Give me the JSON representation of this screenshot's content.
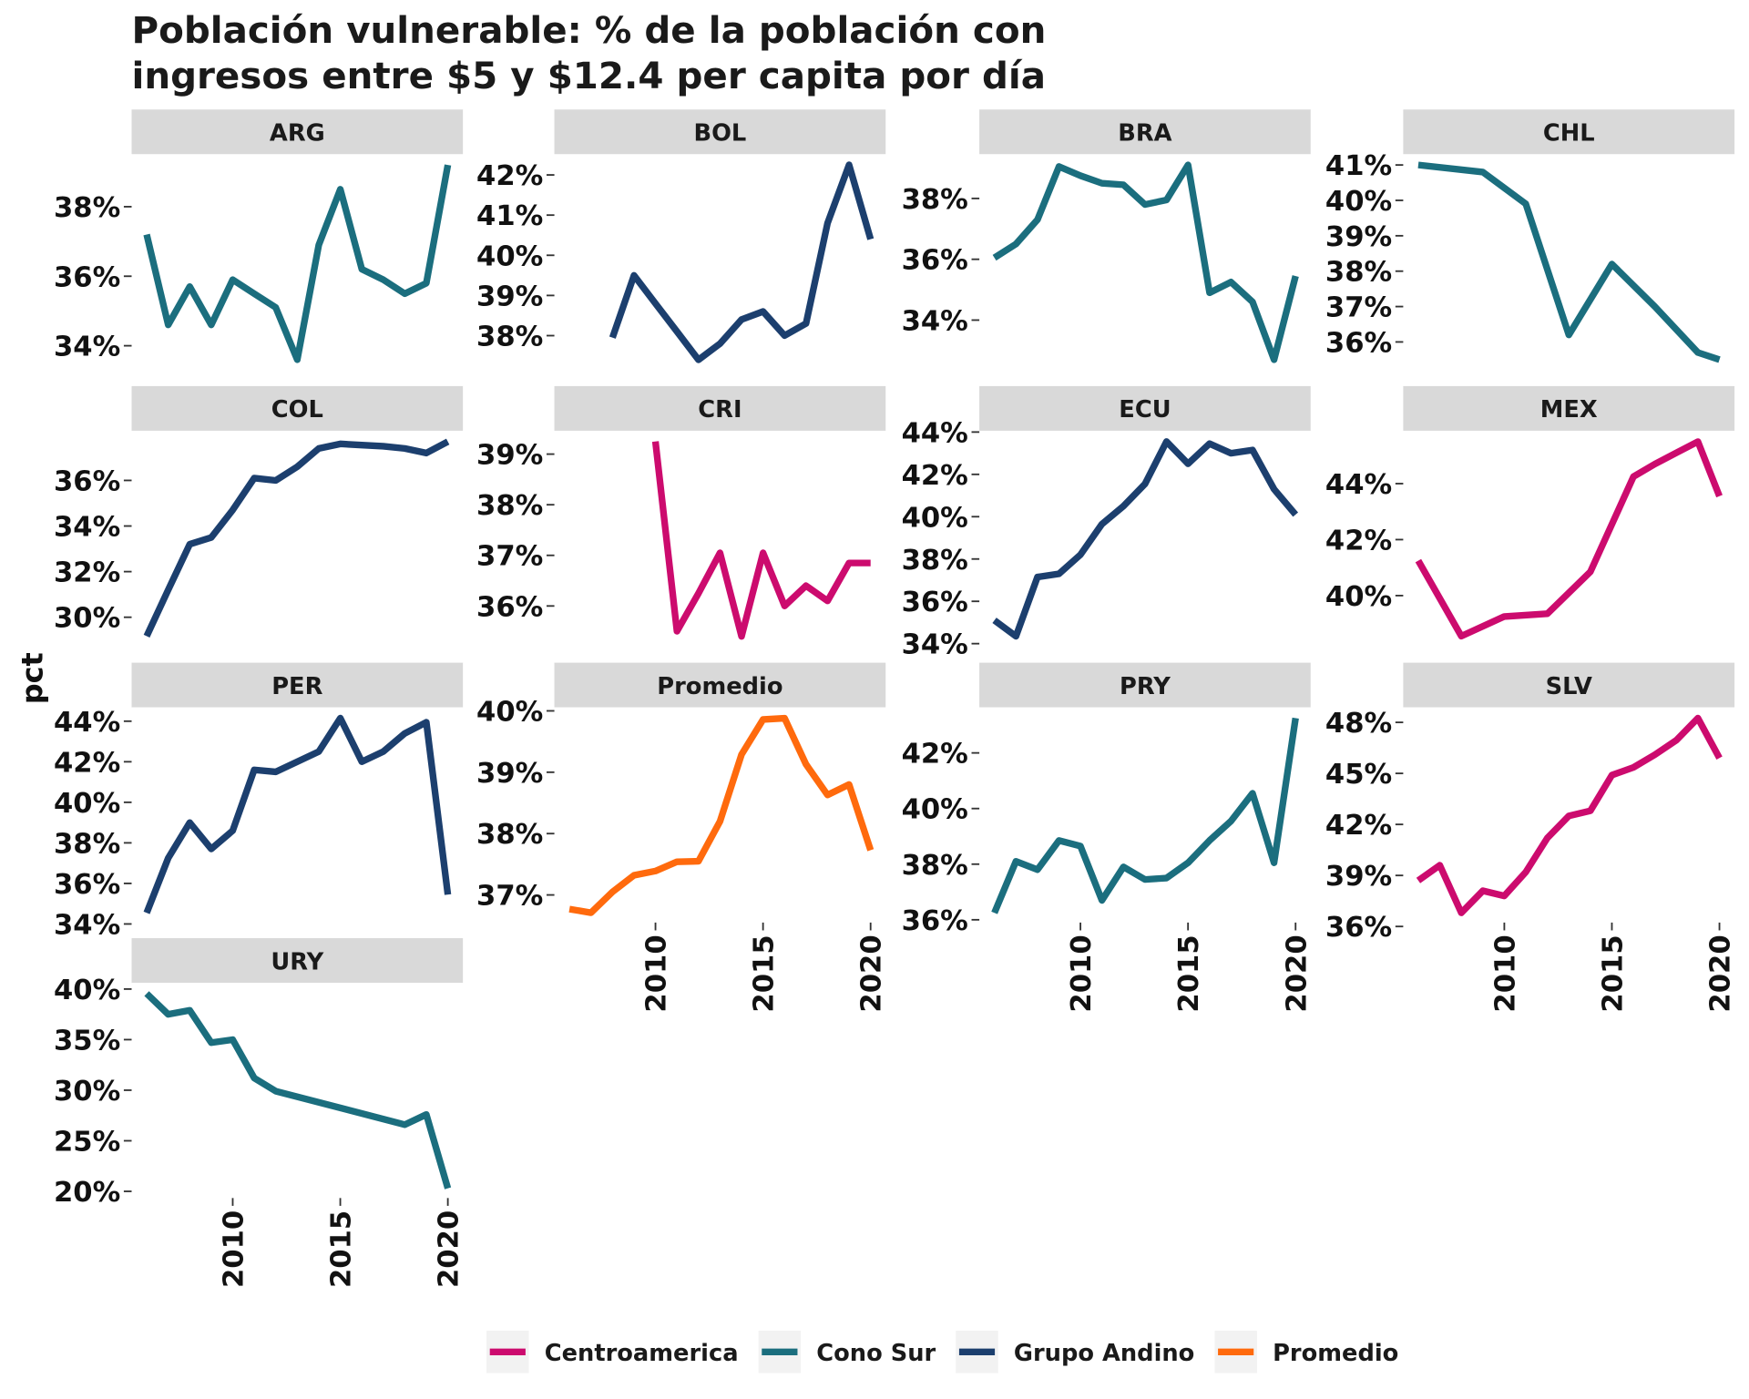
{
  "title": [
    "Población vulnerable: % de la población con",
    "ingresos entre $5 y $12.4 per capita por día"
  ],
  "y_label": "pct",
  "legend": {
    "position": "bottom"
  },
  "chart_data": [
    {
      "type": "line",
      "title": "ARG",
      "xlim": [
        2005.3,
        2020.7
      ],
      "ylim": [
        33.32,
        39.48
      ],
      "x": [
        2006,
        2007,
        2008,
        2009,
        2010,
        2011,
        2012,
        2013,
        2014,
        2015,
        2016,
        2017,
        2018,
        2019,
        2020
      ],
      "series": [
        {
          "name": "Cono Sur",
          "color": "#1b6e7e",
          "values": [
            37.2,
            34.6,
            35.7,
            34.6,
            35.9,
            35.5,
            35.1,
            33.6,
            36.9,
            38.5,
            36.2,
            35.9,
            35.5,
            35.8,
            39.2
          ]
        }
      ],
      "yticks": [
        {
          "value": 34,
          "label": "34%"
        },
        {
          "value": 36,
          "label": "36%"
        },
        {
          "value": 38,
          "label": "38%"
        }
      ]
    },
    {
      "type": "line",
      "title": "BOL",
      "xlim": [
        2005.3,
        2020.7
      ],
      "ylim": [
        37.16,
        42.49
      ],
      "x": [
        2008,
        2009,
        2010,
        2011,
        2012,
        2013,
        2014,
        2015,
        2016,
        2017,
        2018,
        2019,
        2020
      ],
      "series": [
        {
          "name": "Grupo Andino",
          "color": "#1c3f6e",
          "values": [
            37.95,
            39.5,
            38.8,
            38.1,
            37.4,
            37.8,
            38.4,
            38.6,
            38.0,
            38.3,
            40.8,
            42.25,
            40.4
          ]
        }
      ],
      "yticks": [
        {
          "value": 38,
          "label": "38%"
        },
        {
          "value": 39,
          "label": "39%"
        },
        {
          "value": 40,
          "label": "40%"
        },
        {
          "value": 41,
          "label": "41%"
        },
        {
          "value": 42,
          "label": "42%"
        }
      ]
    },
    {
      "type": "line",
      "title": "BRA",
      "xlim": [
        2005.3,
        2020.7
      ],
      "ylim": [
        32.38,
        39.42
      ],
      "x": [
        2006,
        2007,
        2008,
        2009,
        2010,
        2011,
        2012,
        2013,
        2014,
        2015,
        2016,
        2017,
        2018,
        2019,
        2020
      ],
      "series": [
        {
          "name": "Cono Sur",
          "color": "#1b6e7e",
          "values": [
            36.05,
            36.5,
            37.3,
            39.05,
            38.75,
            38.5,
            38.45,
            37.8,
            37.95,
            39.1,
            34.9,
            35.25,
            34.6,
            32.7,
            35.45
          ]
        }
      ],
      "yticks": [
        {
          "value": 34,
          "label": "34%"
        },
        {
          "value": 36,
          "label": "36%"
        },
        {
          "value": 38,
          "label": "38%"
        }
      ]
    },
    {
      "type": "line",
      "title": "CHL",
      "xlim": [
        2005.3,
        2020.7
      ],
      "ylim": [
        35.225,
        41.275
      ],
      "x": [
        2006,
        2009,
        2011,
        2013,
        2015,
        2017,
        2019,
        2020
      ],
      "series": [
        {
          "name": "Cono Sur",
          "color": "#1b6e7e",
          "values": [
            41.0,
            40.8,
            39.9,
            36.2,
            38.2,
            37.0,
            35.7,
            35.5
          ]
        }
      ],
      "yticks": [
        {
          "value": 36,
          "label": "36%"
        },
        {
          "value": 37,
          "label": "37%"
        },
        {
          "value": 38,
          "label": "38%"
        },
        {
          "value": 39,
          "label": "39%"
        },
        {
          "value": 40,
          "label": "40%"
        },
        {
          "value": 41,
          "label": "41%"
        }
      ]
    },
    {
      "type": "line",
      "title": "COL",
      "xlim": [
        2005.3,
        2020.7
      ],
      "ylim": [
        28.74,
        38.13
      ],
      "x": [
        2006,
        2007,
        2008,
        2009,
        2010,
        2011,
        2012,
        2013,
        2014,
        2015,
        2016,
        2017,
        2018,
        2019,
        2020
      ],
      "series": [
        {
          "name": "Grupo Andino",
          "color": "#1c3f6e",
          "values": [
            29.17,
            31.2,
            33.2,
            33.5,
            34.7,
            36.1,
            36.0,
            36.6,
            37.4,
            37.6,
            37.55,
            37.5,
            37.4,
            37.2,
            37.7
          ]
        }
      ],
      "yticks": [
        {
          "value": 30,
          "label": "30%"
        },
        {
          "value": 32,
          "label": "32%"
        },
        {
          "value": 34,
          "label": "34%"
        },
        {
          "value": 36,
          "label": "36%"
        }
      ]
    },
    {
      "type": "line",
      "title": "CRI",
      "xlim": [
        2005.3,
        2020.7
      ],
      "ylim": [
        35.21,
        39.44
      ],
      "x": [
        2010,
        2011,
        2012,
        2013,
        2014,
        2015,
        2016,
        2017,
        2018,
        2019,
        2020
      ],
      "series": [
        {
          "name": "Centroamerica",
          "color": "#cc0b6e",
          "values": [
            39.25,
            35.5,
            36.25,
            37.05,
            35.4,
            37.05,
            36.0,
            36.4,
            36.1,
            36.85,
            36.85
          ]
        }
      ],
      "yticks": [
        {
          "value": 36,
          "label": "36%"
        },
        {
          "value": 37,
          "label": "37%"
        },
        {
          "value": 38,
          "label": "38%"
        },
        {
          "value": 39,
          "label": "39%"
        }
      ]
    },
    {
      "type": "line",
      "title": "ECU",
      "xlim": [
        2005.3,
        2020.7
      ],
      "ylim": [
        33.89,
        44.01
      ],
      "x": [
        2006,
        2007,
        2008,
        2009,
        2010,
        2011,
        2012,
        2013,
        2014,
        2015,
        2016,
        2017,
        2018,
        2019,
        2020
      ],
      "series": [
        {
          "name": "Grupo Andino",
          "color": "#1c3f6e",
          "values": [
            35.1,
            34.35,
            37.15,
            37.3,
            38.2,
            39.65,
            40.5,
            41.55,
            43.55,
            42.5,
            43.45,
            43.0,
            43.15,
            41.3,
            40.1
          ]
        }
      ],
      "yticks": [
        {
          "value": 34,
          "label": "34%"
        },
        {
          "value": 36,
          "label": "36%"
        },
        {
          "value": 38,
          "label": "38%"
        },
        {
          "value": 40,
          "label": "40%"
        },
        {
          "value": 42,
          "label": "42%"
        },
        {
          "value": 44,
          "label": "44%"
        }
      ]
    },
    {
      "type": "line",
      "title": "MEX",
      "xlim": [
        2005.3,
        2020.7
      ],
      "ylim": [
        38.2,
        45.85
      ],
      "x": [
        2006,
        2008,
        2010,
        2012,
        2014,
        2016,
        2017,
        2018,
        2019,
        2020
      ],
      "series": [
        {
          "name": "Centroamerica",
          "color": "#cc0b6e",
          "values": [
            41.25,
            38.55,
            39.25,
            39.35,
            40.85,
            44.25,
            44.7,
            45.1,
            45.5,
            43.55
          ]
        }
      ],
      "yticks": [
        {
          "value": 40,
          "label": "40%"
        },
        {
          "value": 42,
          "label": "42%"
        },
        {
          "value": 44,
          "label": "44%"
        }
      ]
    },
    {
      "type": "line",
      "title": "PER",
      "xlim": [
        2005.3,
        2020.7
      ],
      "ylim": [
        34.07,
        44.63
      ],
      "x": [
        2006,
        2007,
        2008,
        2009,
        2010,
        2011,
        2012,
        2013,
        2014,
        2015,
        2016,
        2017,
        2018,
        2019,
        2020
      ],
      "series": [
        {
          "name": "Grupo Andino",
          "color": "#1c3f6e",
          "values": [
            34.55,
            37.25,
            39.0,
            37.7,
            38.6,
            41.6,
            41.5,
            42.0,
            42.5,
            44.15,
            42.0,
            42.5,
            43.4,
            43.95,
            35.45
          ]
        }
      ],
      "yticks": [
        {
          "value": 34,
          "label": "34%"
        },
        {
          "value": 36,
          "label": "36%"
        },
        {
          "value": 38,
          "label": "38%"
        },
        {
          "value": 40,
          "label": "40%"
        },
        {
          "value": 42,
          "label": "42%"
        },
        {
          "value": 44,
          "label": "44%"
        }
      ]
    },
    {
      "type": "line",
      "title": "Promedio",
      "xlim": [
        2005.3,
        2020.7
      ],
      "ylim": [
        36.55,
        40.04
      ],
      "xticks": [
        2010,
        2015,
        2020
      ],
      "x": [
        2006,
        2007,
        2008,
        2009,
        2010,
        2011,
        2012,
        2013,
        2014,
        2015,
        2016,
        2017,
        2018,
        2019,
        2020
      ],
      "series": [
        {
          "name": "Promedio",
          "color": "#ff6a0d",
          "values": [
            36.77,
            36.71,
            37.05,
            37.32,
            37.39,
            37.54,
            37.55,
            38.2,
            39.29,
            39.86,
            39.88,
            39.13,
            38.63,
            38.8,
            37.73
          ]
        }
      ],
      "yticks": [
        {
          "value": 37,
          "label": "37%"
        },
        {
          "value": 38,
          "label": "38%"
        },
        {
          "value": 39,
          "label": "39%"
        },
        {
          "value": 40,
          "label": "40%"
        }
      ]
    },
    {
      "type": "line",
      "title": "PRY",
      "xlim": [
        2005.3,
        2020.7
      ],
      "ylim": [
        35.9,
        43.6
      ],
      "xticks": [
        2010,
        2015,
        2020
      ],
      "x": [
        2006,
        2007,
        2008,
        2009,
        2010,
        2011,
        2012,
        2013,
        2014,
        2015,
        2016,
        2017,
        2018,
        2019,
        2020
      ],
      "series": [
        {
          "name": "Cono Sur",
          "color": "#1b6e7e",
          "values": [
            36.25,
            38.1,
            37.8,
            38.85,
            38.65,
            36.7,
            37.9,
            37.45,
            37.5,
            38.05,
            38.85,
            39.55,
            40.55,
            38.05,
            43.25
          ]
        }
      ],
      "yticks": [
        {
          "value": 36,
          "label": "36%"
        },
        {
          "value": 38,
          "label": "38%"
        },
        {
          "value": 40,
          "label": "40%"
        },
        {
          "value": 42,
          "label": "42%"
        }
      ]
    },
    {
      "type": "line",
      "title": "SLV",
      "xlim": [
        2005.3,
        2020.7
      ],
      "ylim": [
        36.23,
        48.82
      ],
      "xticks": [
        2010,
        2015,
        2020
      ],
      "x": [
        2006,
        2007,
        2008,
        2009,
        2010,
        2011,
        2012,
        2013,
        2014,
        2015,
        2016,
        2017,
        2018,
        2019,
        2020
      ],
      "series": [
        {
          "name": "Centroamerica",
          "color": "#cc0b6e",
          "values": [
            38.7,
            39.6,
            36.8,
            38.1,
            37.8,
            39.2,
            41.2,
            42.5,
            42.8,
            44.9,
            45.35,
            46.1,
            46.95,
            48.25,
            45.9
          ]
        }
      ],
      "yticks": [
        {
          "value": 36,
          "label": "36%"
        },
        {
          "value": 39,
          "label": "39%"
        },
        {
          "value": 42,
          "label": "42%"
        },
        {
          "value": 45,
          "label": "45%"
        },
        {
          "value": 48,
          "label": "48%"
        }
      ]
    },
    {
      "type": "line",
      "title": "URY",
      "xlim": [
        2005.3,
        2020.7
      ],
      "ylim": [
        19.34,
        40.51
      ],
      "xticks": [
        2010,
        2015,
        2020
      ],
      "x": [
        2006,
        2007,
        2008,
        2009,
        2010,
        2011,
        2012,
        2018,
        2019,
        2020
      ],
      "series": [
        {
          "name": "Cono Sur",
          "color": "#1b6e7e",
          "values": [
            39.55,
            37.5,
            37.9,
            34.7,
            35.0,
            31.2,
            29.9,
            26.6,
            27.6,
            20.3
          ]
        }
      ],
      "yticks": [
        {
          "value": 20,
          "label": "20%"
        },
        {
          "value": 25,
          "label": "25%"
        },
        {
          "value": 30,
          "label": "30%"
        },
        {
          "value": 35,
          "label": "35%"
        },
        {
          "value": 40,
          "label": "40%"
        }
      ]
    }
  ]
}
